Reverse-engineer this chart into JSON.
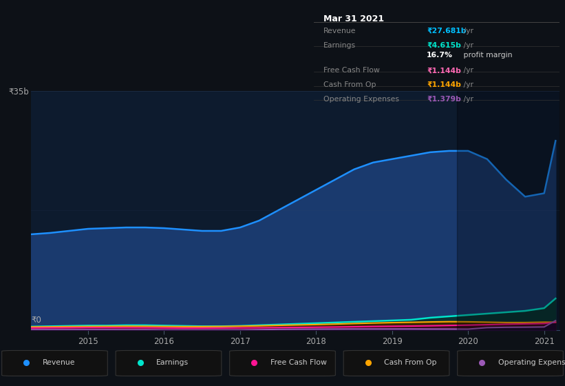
{
  "background_color": "#0d1117",
  "plot_bg_color": "#0d1b2e",
  "title_box": {
    "date": "Mar 31 2021",
    "rows": [
      {
        "label": "Revenue",
        "value": "₹27.681b",
        "suffix": " /yr",
        "value_color": "#00bfff"
      },
      {
        "label": "Earnings",
        "value": "₹4.615b",
        "suffix": " /yr",
        "value_color": "#00e5cc"
      },
      {
        "label": "",
        "value": "16.7%",
        "suffix": " profit margin",
        "value_color": "#ffffff"
      },
      {
        "label": "Free Cash Flow",
        "value": "₹1.144b",
        "suffix": " /yr",
        "value_color": "#ff69b4"
      },
      {
        "label": "Cash From Op",
        "value": "₹1.144b",
        "suffix": " /yr",
        "value_color": "#ffa500"
      },
      {
        "label": "Operating Expenses",
        "value": "₹1.379b",
        "suffix": " /yr",
        "value_color": "#9b59b6"
      }
    ]
  },
  "years": [
    2014.25,
    2014.5,
    2014.75,
    2015.0,
    2015.25,
    2015.5,
    2015.75,
    2016.0,
    2016.25,
    2016.5,
    2016.75,
    2017.0,
    2017.25,
    2017.5,
    2017.75,
    2018.0,
    2018.25,
    2018.5,
    2018.75,
    2019.0,
    2019.25,
    2019.5,
    2019.75,
    2020.0,
    2020.25,
    2020.5,
    2020.75,
    2021.0,
    2021.15
  ],
  "revenue": [
    14.0,
    14.2,
    14.5,
    14.8,
    14.9,
    15.0,
    15.0,
    14.9,
    14.7,
    14.5,
    14.5,
    15.0,
    16.0,
    17.5,
    19.0,
    20.5,
    22.0,
    23.5,
    24.5,
    25.0,
    25.5,
    26.0,
    26.2,
    26.2,
    25.0,
    22.0,
    19.5,
    20.0,
    27.68
  ],
  "earnings": [
    0.5,
    0.55,
    0.6,
    0.65,
    0.65,
    0.7,
    0.7,
    0.65,
    0.6,
    0.55,
    0.55,
    0.6,
    0.7,
    0.8,
    0.9,
    1.0,
    1.1,
    1.2,
    1.3,
    1.4,
    1.5,
    1.8,
    2.0,
    2.2,
    2.4,
    2.6,
    2.8,
    3.2,
    4.615
  ],
  "free_cash_flow": [
    0.3,
    0.32,
    0.33,
    0.35,
    0.35,
    0.34,
    0.33,
    0.3,
    0.28,
    0.28,
    0.29,
    0.31,
    0.33,
    0.36,
    0.38,
    0.41,
    0.44,
    0.48,
    0.52,
    0.55,
    0.58,
    0.62,
    0.67,
    0.72,
    0.78,
    0.85,
    0.9,
    0.95,
    1.144
  ],
  "cash_from_op": [
    0.45,
    0.47,
    0.5,
    0.52,
    0.54,
    0.56,
    0.55,
    0.52,
    0.5,
    0.5,
    0.52,
    0.56,
    0.61,
    0.68,
    0.74,
    0.8,
    0.87,
    0.95,
    1.02,
    1.08,
    1.13,
    1.18,
    1.22,
    1.2,
    1.15,
    1.1,
    1.1,
    1.15,
    1.144
  ],
  "op_expenses": [
    0.05,
    0.05,
    0.05,
    0.05,
    0.05,
    0.04,
    0.04,
    0.0,
    0.0,
    0.0,
    0.0,
    0.0,
    0.05,
    0.1,
    0.12,
    0.13,
    0.14,
    0.15,
    0.15,
    0.15,
    0.15,
    0.14,
    0.14,
    0.13,
    0.35,
    0.4,
    0.42,
    0.45,
    1.379
  ],
  "ylim": [
    0,
    35
  ],
  "ytick_label": "₹35b",
  "y0_label": "₹0",
  "xlim": [
    2014.25,
    2021.2
  ],
  "revenue_color": "#1e90ff",
  "revenue_fill": "#1a3a6e",
  "earnings_color": "#00e5cc",
  "earnings_fill": "#0a3535",
  "fcf_color": "#ff1493",
  "fcf_fill": "#3a0a1e",
  "cashop_color": "#ffa500",
  "cashop_fill": "#3a2500",
  "opex_color": "#9b59b6",
  "opex_fill": "#1e0a2e",
  "legend_items": [
    {
      "label": "Revenue",
      "color": "#1e90ff"
    },
    {
      "label": "Earnings",
      "color": "#00e5cc"
    },
    {
      "label": "Free Cash Flow",
      "color": "#ff1493"
    },
    {
      "label": "Cash From Op",
      "color": "#ffa500"
    },
    {
      "label": "Operating Expenses",
      "color": "#9b59b6"
    }
  ],
  "dark_overlay_start": 2019.85,
  "dark_overlay_end": 2021.2,
  "xticks": [
    2015,
    2016,
    2017,
    2018,
    2019,
    2020,
    2021
  ]
}
